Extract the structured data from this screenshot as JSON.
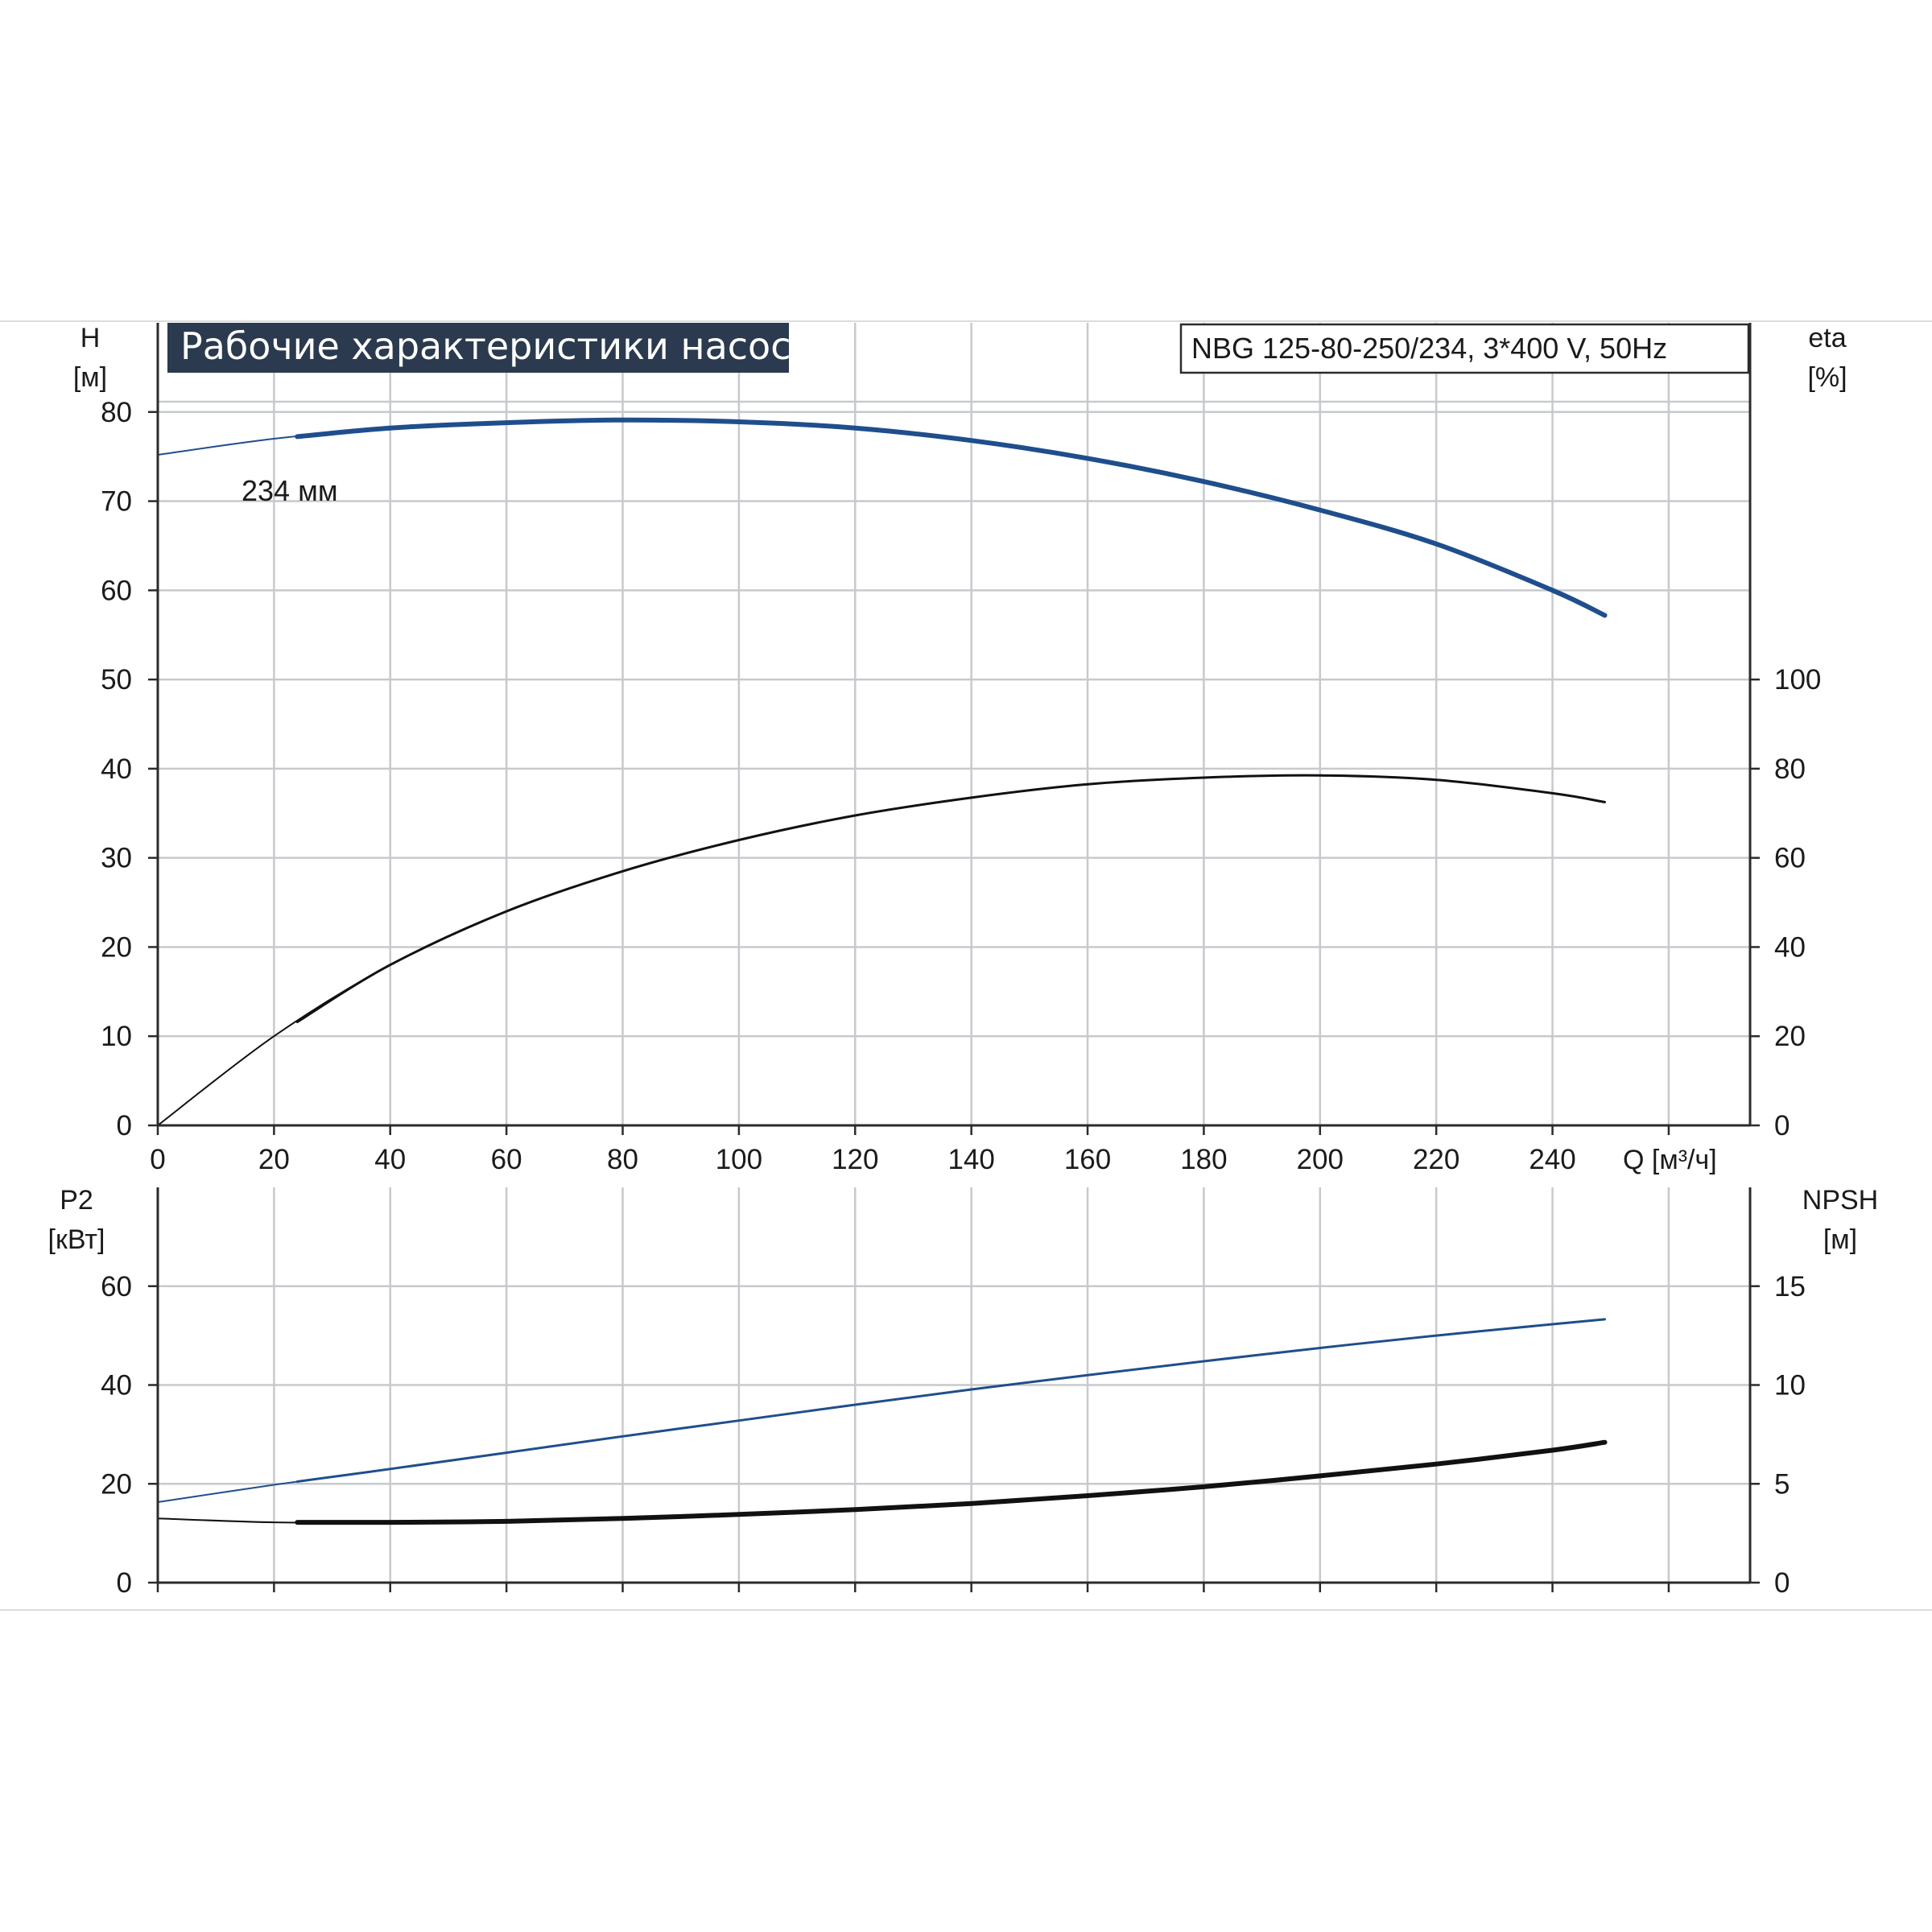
{
  "chart_data": [
    {
      "type": "line",
      "title": "Рабочие характеристики насоса",
      "model": "NBG 125-80-250/234, 3*400 V, 50Hz",
      "xlabel": "Q [м³/ч]",
      "xlim": [
        0,
        274
      ],
      "xticks": [
        0,
        20,
        40,
        60,
        80,
        100,
        120,
        140,
        160,
        180,
        200,
        220,
        240
      ],
      "left_axis": {
        "label_top": "H",
        "label_unit": "[м]",
        "ylim": [
          0,
          90
        ],
        "ticks": [
          0,
          10,
          20,
          30,
          40,
          50,
          60,
          70,
          80
        ]
      },
      "right_axis": {
        "label_top": "eta",
        "label_unit": "[%]",
        "ylim": [
          0,
          180
        ],
        "ticks": [
          0,
          20,
          40,
          60,
          80,
          100
        ]
      },
      "grid": true,
      "series": [
        {
          "name": "234 мм",
          "axis": "left",
          "color": "#1f4e8c",
          "x": [
            0,
            20,
            40,
            60,
            80,
            100,
            120,
            140,
            160,
            180,
            200,
            220,
            240,
            249
          ],
          "y": [
            75.2,
            77.0,
            78.2,
            78.8,
            79.1,
            78.9,
            78.2,
            76.8,
            74.8,
            72.2,
            69.0,
            65.2,
            60.0,
            57.2
          ]
        },
        {
          "name": "",
          "axis": "right",
          "color": "#111111",
          "x": [
            0,
            20,
            40,
            60,
            80,
            100,
            120,
            140,
            160,
            180,
            200,
            220,
            240,
            249
          ],
          "y": [
            0,
            20,
            36,
            48,
            57,
            64,
            69.5,
            73.5,
            76.5,
            78,
            78.5,
            77.5,
            74.5,
            72.5
          ]
        }
      ]
    },
    {
      "type": "line",
      "xlim": [
        0,
        274
      ],
      "xticks": [
        0,
        20,
        40,
        60,
        80,
        100,
        120,
        140,
        160,
        180,
        200,
        220,
        240
      ],
      "left_axis": {
        "label_top": "P2",
        "label_unit": "[кВт]",
        "ylim": [
          0,
          80
        ],
        "ticks": [
          0,
          20,
          40,
          60
        ]
      },
      "right_axis": {
        "label_top": "NPSH",
        "label_unit": "[м]",
        "ylim": [
          0,
          20
        ],
        "ticks": [
          0,
          5,
          10,
          15
        ]
      },
      "grid": true,
      "series": [
        {
          "name": "",
          "axis": "left",
          "color": "#1f4e8c",
          "x": [
            0,
            20,
            40,
            60,
            80,
            100,
            120,
            140,
            160,
            180,
            200,
            220,
            240,
            249
          ],
          "y": [
            16.3,
            19.8,
            23.0,
            26.3,
            29.6,
            32.8,
            36.0,
            39.1,
            42.0,
            44.8,
            47.5,
            50.0,
            52.3,
            53.3
          ]
        },
        {
          "name": "",
          "axis": "right",
          "color": "#111111",
          "x": [
            0,
            20,
            40,
            60,
            80,
            100,
            120,
            140,
            160,
            180,
            200,
            220,
            240,
            249
          ],
          "y": [
            3.25,
            3.05,
            3.05,
            3.1,
            3.25,
            3.45,
            3.7,
            4.0,
            4.4,
            4.85,
            5.4,
            6.0,
            6.7,
            7.1
          ]
        }
      ]
    }
  ]
}
